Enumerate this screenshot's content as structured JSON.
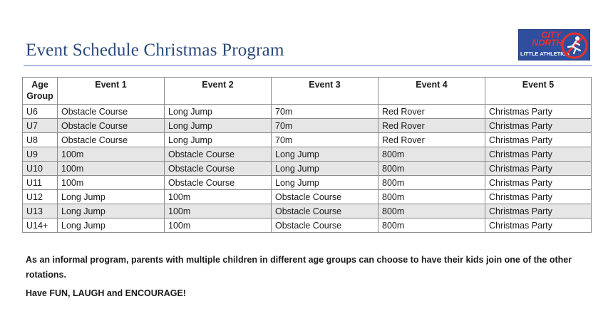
{
  "header": {
    "title": "Event Schedule Christmas Program",
    "logo": {
      "line1": "CITY",
      "line2": "NORTH",
      "line3": "LITTLE ATHLETICS",
      "icon": "runner-icon"
    }
  },
  "table": {
    "headers": [
      "Age Group",
      "Event 1",
      "Event 2",
      "Event 3",
      "Event 4",
      "Event 5"
    ],
    "rows": [
      [
        "U6",
        "Obstacle Course",
        "Long Jump",
        "70m",
        "Red Rover",
        "Christmas Party"
      ],
      [
        "U7",
        "Obstacle Course",
        "Long Jump",
        "70m",
        "Red Rover",
        "Christmas Party"
      ],
      [
        "U8",
        "Obstacle Course",
        "Long Jump",
        "70m",
        "Red Rover",
        "Christmas Party"
      ],
      [
        "U9",
        "100m",
        "Obstacle Course",
        "Long Jump",
        "800m",
        "Christmas Party"
      ],
      [
        "U10",
        "100m",
        "Obstacle Course",
        "Long Jump",
        "800m",
        "Christmas Party"
      ],
      [
        "U11",
        "100m",
        "Obstacle Course",
        "Long Jump",
        "800m",
        "Christmas Party"
      ],
      [
        "U12",
        "Long Jump",
        "100m",
        "Obstacle Course",
        "800m",
        "Christmas Party"
      ],
      [
        "U13",
        "Long Jump",
        "100m",
        "Obstacle Course",
        "800m",
        "Christmas Party"
      ],
      [
        "U14+",
        "Long Jump",
        "100m",
        "Obstacle Course",
        "800m",
        "Christmas Party"
      ]
    ],
    "shaded_rows": [
      1,
      3,
      4,
      7
    ]
  },
  "footer": {
    "note": "As an informal program, parents with multiple children in different age groups can choose to have their kids join one of the other rotations.",
    "motto": "Have FUN, LAUGH and ENCOURAGE!"
  },
  "colors": {
    "title": "#2b4a7a",
    "rule": "#5a7ab8",
    "logo_bg": "#2f4f9e",
    "logo_accent": "#e8302c",
    "row_shade": "#e6e6e6"
  }
}
